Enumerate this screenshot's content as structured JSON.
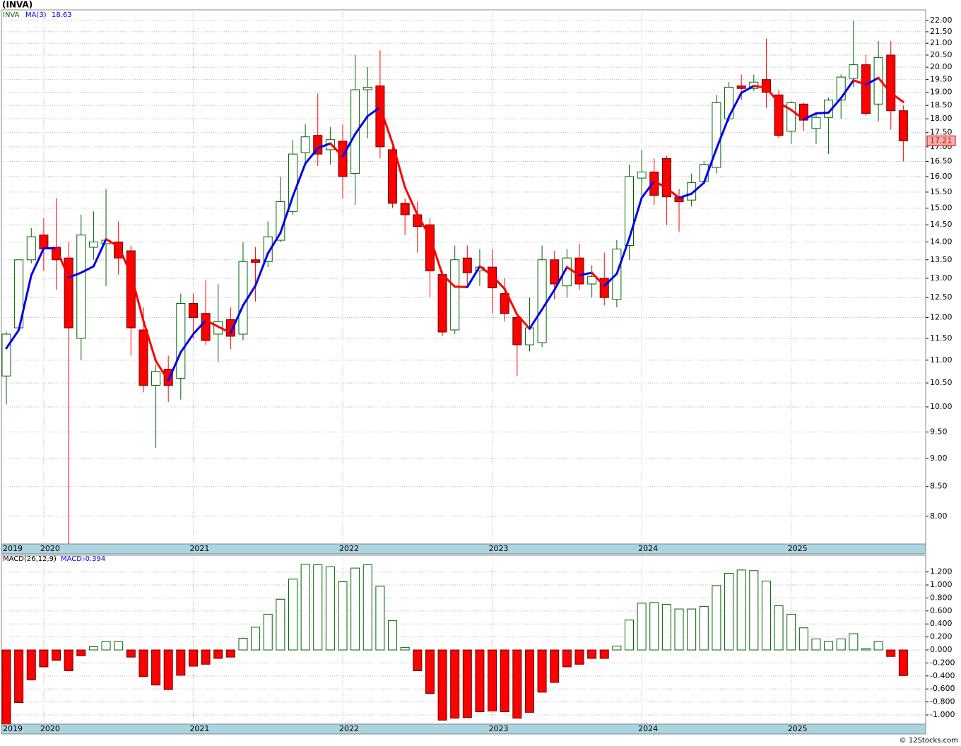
{
  "chart_data": [
    {
      "type": "candlestick",
      "title": "(INVA)",
      "symbol": "INVA",
      "categories": [
        "2019",
        null,
        null,
        "2020",
        null,
        null,
        null,
        null,
        null,
        null,
        null,
        null,
        null,
        null,
        null,
        "2021",
        null,
        null,
        null,
        null,
        null,
        null,
        null,
        null,
        null,
        null,
        null,
        "2022",
        null,
        null,
        null,
        null,
        null,
        null,
        null,
        null,
        null,
        null,
        null,
        "2023",
        null,
        null,
        null,
        null,
        null,
        null,
        null,
        null,
        null,
        null,
        null,
        "2024",
        null,
        null,
        null,
        null,
        null,
        null,
        null,
        null,
        null,
        null,
        null,
        "2025",
        null,
        null,
        null,
        null,
        null,
        null,
        null,
        null,
        null
      ],
      "open": [
        10.65,
        11.75,
        13.5,
        14.2,
        13.85,
        13.55,
        11.5,
        13.85,
        13.95,
        14.0,
        13.75,
        11.7,
        10.45,
        10.8,
        10.6,
        12.35,
        12.1,
        11.6,
        11.95,
        11.6,
        13.5,
        13.45,
        14.05,
        14.9,
        16.8,
        17.4,
        16.9,
        17.2,
        16.1,
        19.1,
        19.25,
        16.9,
        15.15,
        14.8,
        14.5,
        13.1,
        11.7,
        13.55,
        13.2,
        13.3,
        12.6,
        12.0,
        11.35,
        11.4,
        13.5,
        12.8,
        13.55,
        12.85,
        13.0,
        12.45,
        13.9,
        15.95,
        16.15,
        16.6,
        15.35,
        15.25,
        15.85,
        16.3,
        18.0,
        19.25,
        19.15,
        19.5,
        18.9,
        17.55,
        18.55,
        17.65,
        18.05,
        18.7,
        19.55,
        20.1,
        18.55,
        20.5,
        18.3
      ],
      "high": [
        11.65,
        13.5,
        14.4,
        14.7,
        15.3,
        14.0,
        14.8,
        14.9,
        15.6,
        14.6,
        13.9,
        12.25,
        10.9,
        11.1,
        12.6,
        12.6,
        12.95,
        12.85,
        12.25,
        14.0,
        13.85,
        14.6,
        16.0,
        17.25,
        17.8,
        18.95,
        17.7,
        17.8,
        20.5,
        20.0,
        20.7,
        17.0,
        15.3,
        15.2,
        14.7,
        13.2,
        13.9,
        13.9,
        13.8,
        13.8,
        13.0,
        12.1,
        12.5,
        13.9,
        13.75,
        13.8,
        13.95,
        13.35,
        13.7,
        14.05,
        16.4,
        16.9,
        16.6,
        16.7,
        15.6,
        16.1,
        16.5,
        18.9,
        19.4,
        19.7,
        19.7,
        21.2,
        19.1,
        18.65,
        18.6,
        18.25,
        18.8,
        19.7,
        22.0,
        20.5,
        21.1,
        21.1,
        18.5
      ],
      "low": [
        10.05,
        11.7,
        13.4,
        13.2,
        12.7,
        7.5,
        11.0,
        13.5,
        12.8,
        13.1,
        11.1,
        10.3,
        9.2,
        10.1,
        10.15,
        11.5,
        11.35,
        10.95,
        11.25,
        11.45,
        12.4,
        13.3,
        14.0,
        14.8,
        16.4,
        16.35,
        16.4,
        15.3,
        15.1,
        17.3,
        16.6,
        15.0,
        14.2,
        13.7,
        12.5,
        11.55,
        11.6,
        12.8,
        12.8,
        12.1,
        11.9,
        10.65,
        11.2,
        11.3,
        12.45,
        12.5,
        12.7,
        12.5,
        12.3,
        12.25,
        13.5,
        15.4,
        15.1,
        14.5,
        14.3,
        15.05,
        15.75,
        16.1,
        17.9,
        18.7,
        19.05,
        18.4,
        17.3,
        17.1,
        17.55,
        17.1,
        16.75,
        18.0,
        19.2,
        18.1,
        17.9,
        17.6,
        16.5
      ],
      "close": [
        11.6,
        13.5,
        14.15,
        13.8,
        13.5,
        11.75,
        14.2,
        14.0,
        14.05,
        13.55,
        11.75,
        10.45,
        10.75,
        10.45,
        12.35,
        12.0,
        11.45,
        11.9,
        11.55,
        13.45,
        13.43,
        14.15,
        15.2,
        16.75,
        17.35,
        16.75,
        17.25,
        16.0,
        19.1,
        19.2,
        17.0,
        15.15,
        14.8,
        14.45,
        13.2,
        11.65,
        13.5,
        13.15,
        13.3,
        12.75,
        12.1,
        11.35,
        11.75,
        13.5,
        12.85,
        13.55,
        12.85,
        13.05,
        12.5,
        13.8,
        16.0,
        16.15,
        15.4,
        15.35,
        15.2,
        15.8,
        16.4,
        18.6,
        19.2,
        19.15,
        19.4,
        19.0,
        17.4,
        18.6,
        17.95,
        18.05,
        18.7,
        19.6,
        20.1,
        18.2,
        20.4,
        18.3,
        17.21
      ],
      "up_color": "#006400",
      "down_color": "#ff0000",
      "ma": {
        "name": "MA(3)",
        "up_color": "#0000ee",
        "down_color": "#ff0000",
        "values": [
          11.27,
          11.7,
          13.08,
          13.82,
          13.82,
          13.02,
          13.15,
          13.32,
          14.08,
          13.87,
          13.12,
          11.92,
          10.98,
          10.55,
          11.18,
          11.6,
          11.93,
          11.78,
          11.63,
          12.3,
          12.81,
          13.68,
          14.26,
          15.37,
          16.43,
          16.95,
          17.12,
          16.67,
          17.45,
          18.1,
          18.43,
          17.12,
          15.65,
          14.8,
          14.15,
          13.1,
          12.78,
          12.77,
          13.32,
          13.07,
          12.72,
          12.07,
          11.73,
          12.2,
          12.7,
          13.3,
          13.08,
          13.15,
          12.8,
          13.12,
          14.1,
          15.32,
          15.85,
          15.63,
          15.32,
          15.45,
          15.8,
          16.93,
          18.07,
          18.98,
          19.25,
          19.18,
          18.6,
          18.33,
          17.98,
          18.2,
          18.23,
          18.78,
          19.47,
          19.3,
          19.57,
          18.97,
          18.63
        ]
      },
      "log_scale": true,
      "grid": true,
      "ylim": [
        7.56,
        22.48
      ],
      "yticks": [
        {
          "value": 8,
          "label": "8.00"
        },
        {
          "value": 8.5,
          "label": "8.50"
        },
        {
          "value": 9,
          "label": "9.00"
        },
        {
          "value": 9.5,
          "label": "9.50"
        },
        {
          "value": 10,
          "label": "10.00"
        },
        {
          "value": 10.5,
          "label": "10.50"
        },
        {
          "value": 11,
          "label": "11.00"
        },
        {
          "value": 11.5,
          "label": "11.50"
        },
        {
          "value": 12,
          "label": "12.00"
        },
        {
          "value": 12.5,
          "label": "12.50"
        },
        {
          "value": 13,
          "label": "13.00"
        },
        {
          "value": 13.5,
          "label": "13.50"
        },
        {
          "value": 14,
          "label": "14.00"
        },
        {
          "value": 14.5,
          "label": "14.50"
        },
        {
          "value": 15,
          "label": "15.00"
        },
        {
          "value": 15.5,
          "label": "15.50"
        },
        {
          "value": 16,
          "label": "16.00"
        },
        {
          "value": 16.5,
          "label": "16.50"
        },
        {
          "value": 17,
          "label": "17.00"
        },
        {
          "value": 17.5,
          "label": "17.50"
        },
        {
          "value": 18,
          "label": "18.00"
        },
        {
          "value": 18.5,
          "label": "18.50"
        },
        {
          "value": 19,
          "label": "19.00"
        },
        {
          "value": 19.5,
          "label": "19.50"
        },
        {
          "value": 20,
          "label": "20.00"
        },
        {
          "value": 20.5,
          "label": "20.50"
        },
        {
          "value": 21,
          "label": "21.00"
        },
        {
          "value": 21.5,
          "label": "21.50"
        },
        {
          "value": 22,
          "label": "22.00"
        }
      ]
    },
    {
      "type": "bar",
      "name": "MACD(26,12,9)",
      "current_label": "MACD:",
      "categories": [
        "2019",
        null,
        null,
        "2020",
        null,
        null,
        null,
        null,
        null,
        null,
        null,
        null,
        null,
        null,
        null,
        "2021",
        null,
        null,
        null,
        null,
        null,
        null,
        null,
        null,
        null,
        null,
        null,
        "2022",
        null,
        null,
        null,
        null,
        null,
        null,
        null,
        null,
        null,
        null,
        null,
        "2023",
        null,
        null,
        null,
        null,
        null,
        null,
        null,
        null,
        null,
        null,
        null,
        "2024",
        null,
        null,
        null,
        null,
        null,
        null,
        null,
        null,
        null,
        null,
        null,
        "2025",
        null,
        null,
        null,
        null,
        null,
        null,
        null,
        null,
        null
      ],
      "values": [
        -1.2,
        -0.81,
        -0.46,
        -0.26,
        -0.16,
        -0.32,
        -0.09,
        0.05,
        0.13,
        0.13,
        -0.11,
        -0.41,
        -0.54,
        -0.61,
        -0.39,
        -0.25,
        -0.22,
        -0.13,
        -0.11,
        0.18,
        0.35,
        0.55,
        0.78,
        1.09,
        1.32,
        1.31,
        1.28,
        1.05,
        1.26,
        1.31,
        0.98,
        0.45,
        0.04,
        -0.32,
        -0.67,
        -1.08,
        -1.05,
        -1.04,
        -0.95,
        -0.94,
        -0.95,
        -1.05,
        -0.96,
        -0.65,
        -0.5,
        -0.26,
        -0.22,
        -0.13,
        -0.13,
        0.06,
        0.46,
        0.72,
        0.73,
        0.7,
        0.63,
        0.63,
        0.67,
        0.99,
        1.18,
        1.23,
        1.22,
        1.06,
        0.68,
        0.55,
        0.34,
        0.17,
        0.13,
        0.17,
        0.25,
        0.02,
        0.13,
        -0.1,
        -0.394
      ],
      "up_color": "#006400",
      "down_color": "#ff0000",
      "grid": true,
      "ylim": [
        -1.141,
        1.457
      ],
      "yticks": [
        {
          "value": -1,
          "label": "-1.000"
        },
        {
          "value": -0.8,
          "label": "-0.800"
        },
        {
          "value": -0.6,
          "label": "-0.600"
        },
        {
          "value": -0.4,
          "label": "-0.400"
        },
        {
          "value": -0.2,
          "label": "-0.200"
        },
        {
          "value": 0,
          "label": "0.000"
        },
        {
          "value": 0.2,
          "label": "0.200"
        },
        {
          "value": 0.4,
          "label": "0.400"
        },
        {
          "value": 0.6,
          "label": "0.600"
        },
        {
          "value": 0.8,
          "label": "0.800"
        },
        {
          "value": 1,
          "label": "1.000"
        },
        {
          "value": 1.2,
          "label": "1.200"
        }
      ]
    }
  ],
  "footer": "© 12Stocks.com"
}
